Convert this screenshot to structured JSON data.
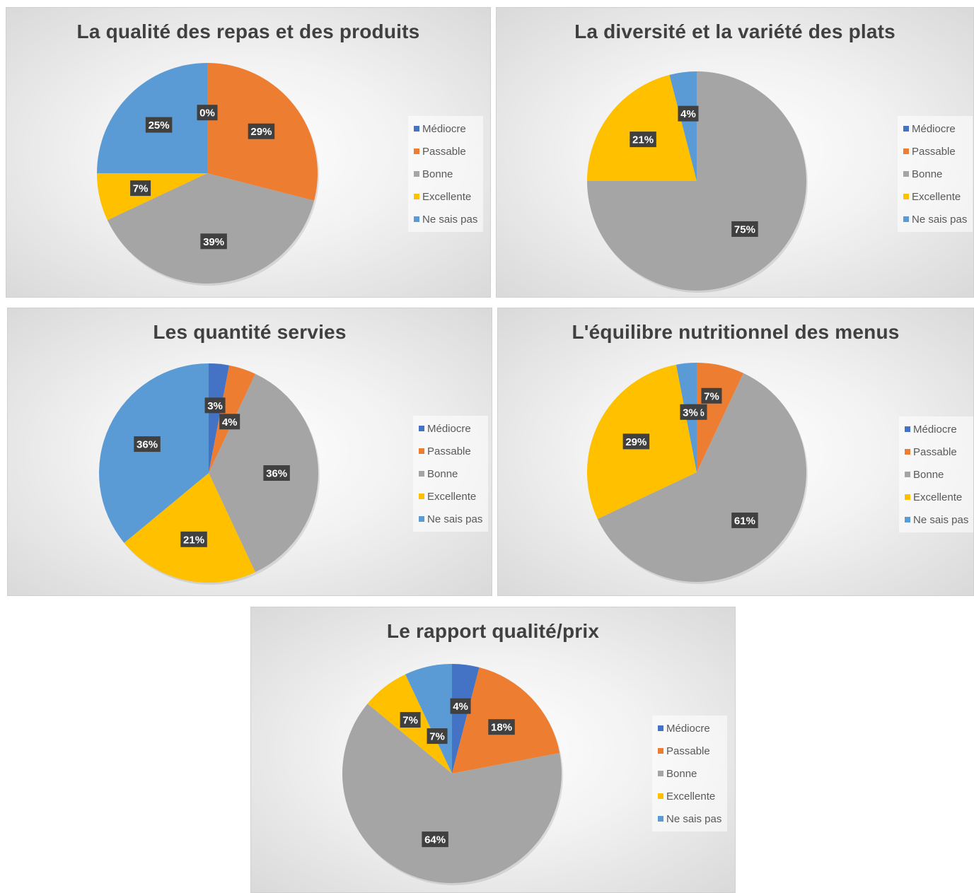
{
  "colors": {
    "mediocre": "#4472C4",
    "passable": "#ED7D31",
    "bonne": "#A5A5A5",
    "excellente": "#FFC000",
    "ne_sais_pas": "#5B9BD5",
    "label_bg": "#404040",
    "label_text": "#ffffff"
  },
  "legend_position": "right",
  "chart_data": [
    {
      "type": "pie",
      "title": "La qualité des repas et des produits",
      "categories": [
        "Médiocre",
        "Passable",
        "Bonne",
        "Excellente",
        "Ne sais pas"
      ],
      "values": [
        0,
        29,
        39,
        7,
        25
      ],
      "data_labels": [
        "0%",
        "29%",
        "39%",
        "7%",
        "25%"
      ]
    },
    {
      "type": "pie",
      "title": "La diversité et la variété des plats",
      "categories": [
        "Médiocre",
        "Passable",
        "Bonne",
        "Excellente",
        "Ne sais pas"
      ],
      "values": [
        0,
        0,
        75,
        21,
        4
      ],
      "data_labels": [
        "",
        "",
        "75%",
        "21%",
        "4%"
      ]
    },
    {
      "type": "pie",
      "title": "Les quantité servies",
      "categories": [
        "Médiocre",
        "Passable",
        "Bonne",
        "Excellente",
        "Ne sais pas"
      ],
      "values": [
        3,
        4,
        36,
        21,
        36
      ],
      "data_labels": [
        "3%",
        "4%",
        "36%",
        "21%",
        "36%"
      ]
    },
    {
      "type": "pie",
      "title": "L'équilibre nutritionnel des menus",
      "categories": [
        "Médiocre",
        "Passable",
        "Bonne",
        "Excellente",
        "Ne sais pas"
      ],
      "values": [
        0,
        7,
        61,
        29,
        3
      ],
      "data_labels": [
        "0%",
        "7%",
        "61%",
        "29%",
        "3%"
      ]
    },
    {
      "type": "pie",
      "title": "Le rapport qualité/prix",
      "categories": [
        "Médiocre",
        "Passable",
        "Bonne",
        "Excellente",
        "Ne sais pas"
      ],
      "values": [
        4,
        18,
        64,
        7,
        7
      ],
      "data_labels": [
        "4%",
        "18%",
        "64%",
        "7%",
        "7%"
      ]
    }
  ]
}
